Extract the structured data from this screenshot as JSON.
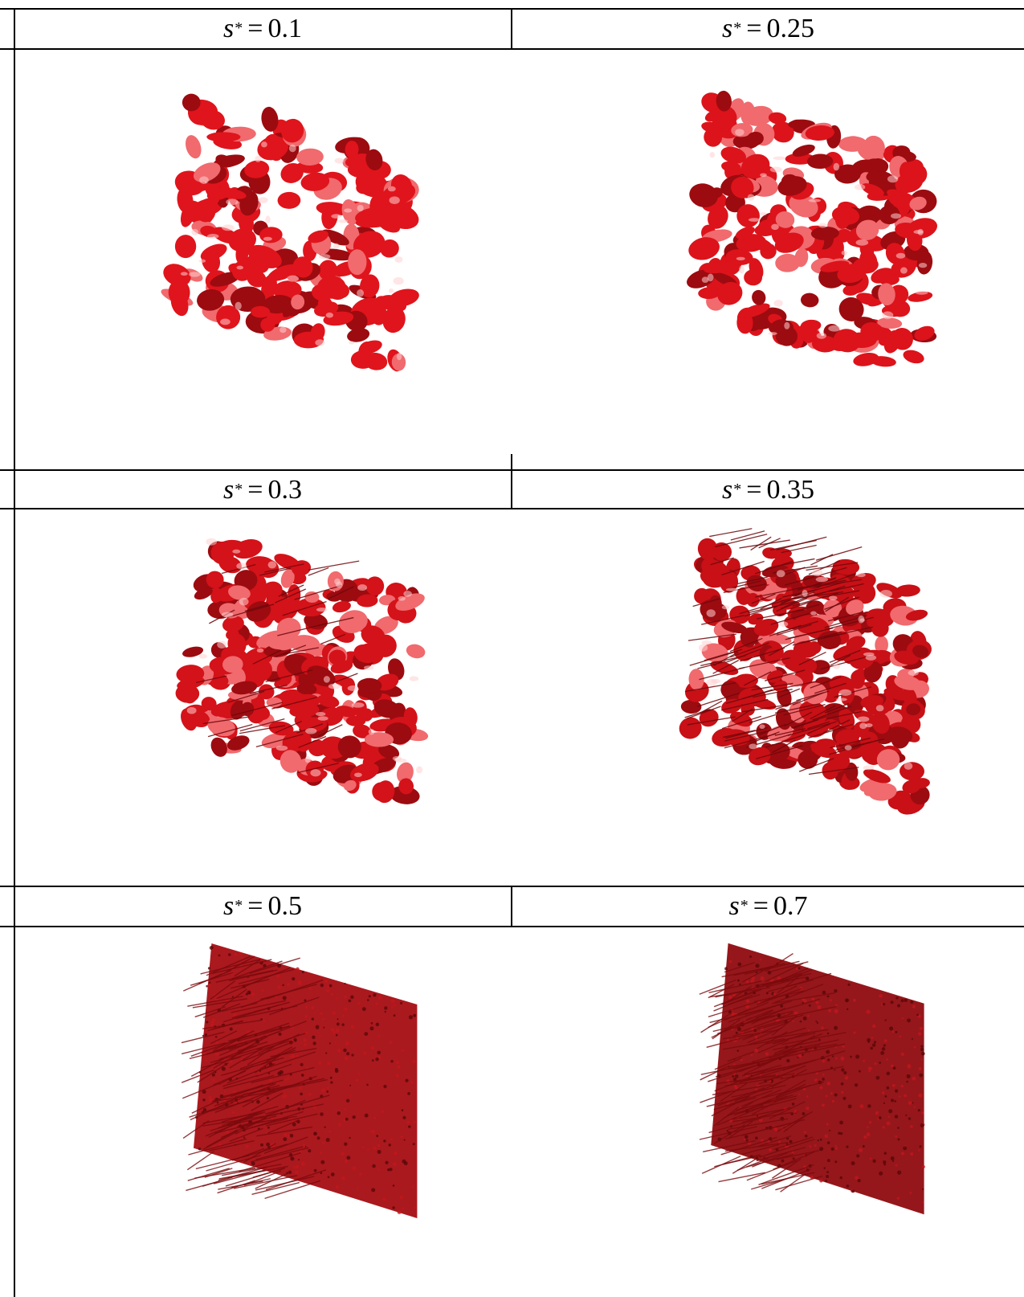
{
  "panels": [
    {
      "symbol": "s",
      "superscript": "*",
      "equals": "=",
      "value": "0.1",
      "level": 0.1,
      "color": "#e0141c"
    },
    {
      "symbol": "s",
      "superscript": "*",
      "equals": "=",
      "value": "0.25",
      "level": 0.25,
      "color": "#dc131b"
    },
    {
      "symbol": "s",
      "superscript": "*",
      "equals": "=",
      "value": "0.3",
      "level": 0.3,
      "color": "#d41219"
    },
    {
      "symbol": "s",
      "superscript": "*",
      "equals": "=",
      "value": "0.35",
      "level": 0.35,
      "color": "#c81016"
    },
    {
      "symbol": "s",
      "superscript": "*",
      "equals": "=",
      "value": "0.5",
      "level": 0.5,
      "color": "#a50d12"
    },
    {
      "symbol": "s",
      "superscript": "*",
      "equals": "=",
      "value": "0.7",
      "level": 0.7,
      "color": "#8f0b0f"
    }
  ]
}
